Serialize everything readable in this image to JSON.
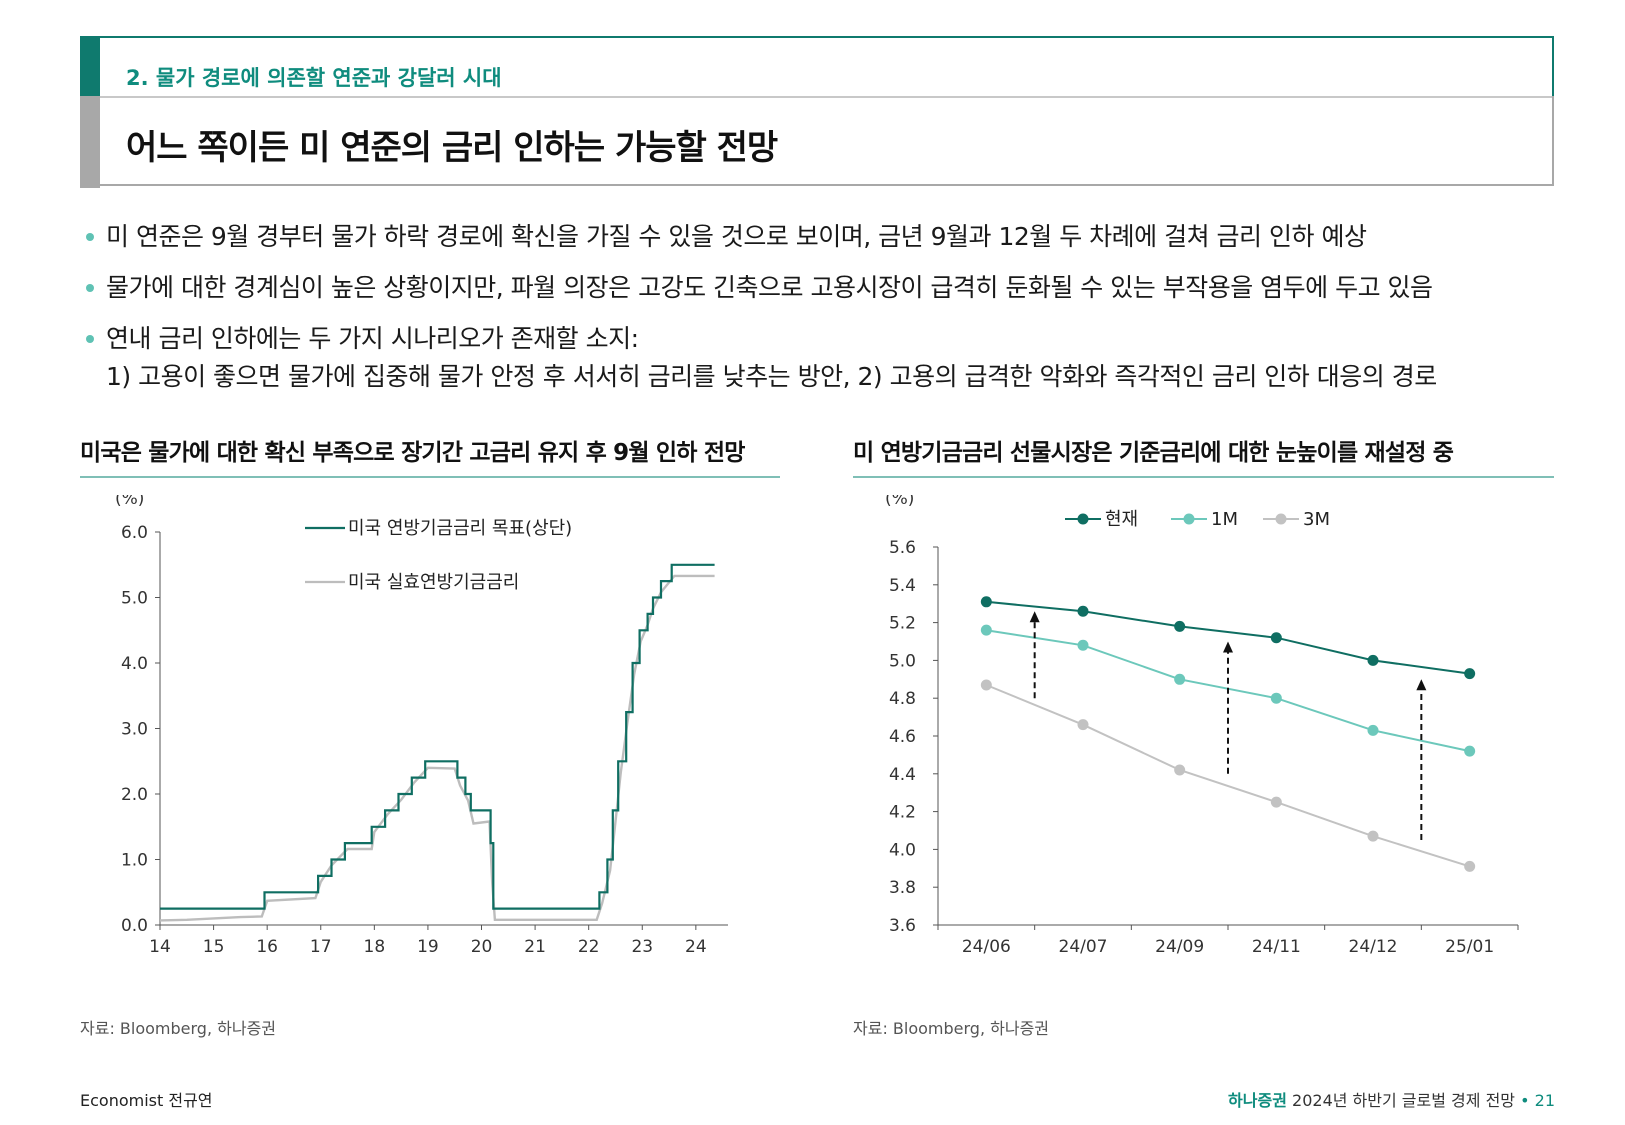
{
  "header": {
    "section_label": "2. 물가 경로에 의존할 연준과 강달러 시대",
    "title": "어느 쪽이든 미 연준의 금리 인하는 가능할 전망"
  },
  "bullets": [
    {
      "text": "미 연준은 9월 경부터 물가 하락 경로에 확신을 가질 수 있을 것으로 보이며, 금년 9월과 12월 두 차례에 걸쳐 금리 인하 예상"
    },
    {
      "text": "물가에 대한 경계심이 높은 상황이지만, 파월 의장은 고강도 긴축으로 고용시장이 급격히 둔화될 수 있는 부작용을 염두에 두고 있음"
    },
    {
      "text": "연내 금리 인하에는 두 가지 시나리오가 존재할 소지:",
      "sub": "1) 고용이 좋으면 물가에 집중해 물가 안정 후 서서히 금리를 낮추는 방안, 2) 고용의 급격한 악화와 즉각적인 금리 인하 대응의 경로"
    }
  ],
  "left_panel": {
    "title": "미국은 물가에 대한 확신 부족으로 장기간 고금리 유지 후 9월 인하 전망",
    "source": "자료: Bloomberg, 하나증권"
  },
  "right_panel": {
    "title": "미 연방기금금리 선물시장은 기준금리에 대한 눈높이를 재설정 중",
    "source": "자료: Bloomberg, 하나증권"
  },
  "footer": {
    "author": "Economist 전규연",
    "brand": "하나증권",
    "report": "2024년 하반기 글로벌 경제 전망",
    "separator": "•",
    "page": "21"
  },
  "chart_data": [
    {
      "type": "line",
      "unit_label": "(%)",
      "ylim": [
        0,
        6
      ],
      "yticks": [
        "0.0",
        "1.0",
        "2.0",
        "3.0",
        "4.0",
        "5.0",
        "6.0"
      ],
      "xlim": [
        14,
        24.6
      ],
      "xticks": [
        "14",
        "15",
        "16",
        "17",
        "18",
        "19",
        "20",
        "21",
        "22",
        "23",
        "24"
      ],
      "legend": "top-center",
      "series": [
        {
          "name": "미국 연방기금금리 목표(상단)",
          "color": "#0f6e62",
          "step": true,
          "points": [
            [
              14,
              0.25
            ],
            [
              15.95,
              0.25
            ],
            [
              15.95,
              0.5
            ],
            [
              16.95,
              0.5
            ],
            [
              16.95,
              0.75
            ],
            [
              17.2,
              0.75
            ],
            [
              17.2,
              1.0
            ],
            [
              17.45,
              1.0
            ],
            [
              17.45,
              1.25
            ],
            [
              17.95,
              1.25
            ],
            [
              17.95,
              1.5
            ],
            [
              18.2,
              1.5
            ],
            [
              18.2,
              1.75
            ],
            [
              18.45,
              1.75
            ],
            [
              18.45,
              2.0
            ],
            [
              18.7,
              2.0
            ],
            [
              18.7,
              2.25
            ],
            [
              18.95,
              2.25
            ],
            [
              18.95,
              2.5
            ],
            [
              19.55,
              2.5
            ],
            [
              19.55,
              2.25
            ],
            [
              19.7,
              2.25
            ],
            [
              19.7,
              2.0
            ],
            [
              19.8,
              2.0
            ],
            [
              19.8,
              1.75
            ],
            [
              20.17,
              1.75
            ],
            [
              20.17,
              1.25
            ],
            [
              20.22,
              1.25
            ],
            [
              20.22,
              0.25
            ],
            [
              22.2,
              0.25
            ],
            [
              22.2,
              0.5
            ],
            [
              22.35,
              0.5
            ],
            [
              22.35,
              1.0
            ],
            [
              22.45,
              1.0
            ],
            [
              22.45,
              1.75
            ],
            [
              22.55,
              1.75
            ],
            [
              22.55,
              2.5
            ],
            [
              22.7,
              2.5
            ],
            [
              22.7,
              3.25
            ],
            [
              22.82,
              3.25
            ],
            [
              22.82,
              4.0
            ],
            [
              22.95,
              4.0
            ],
            [
              22.95,
              4.5
            ],
            [
              23.1,
              4.5
            ],
            [
              23.1,
              4.75
            ],
            [
              23.2,
              4.75
            ],
            [
              23.2,
              5.0
            ],
            [
              23.35,
              5.0
            ],
            [
              23.35,
              5.25
            ],
            [
              23.55,
              5.25
            ],
            [
              23.55,
              5.5
            ],
            [
              24.35,
              5.5
            ]
          ]
        },
        {
          "name": "미국 실효연방기금금리",
          "color": "#bdbdbd",
          "step": false,
          "points": [
            [
              14,
              0.07
            ],
            [
              14.5,
              0.08
            ],
            [
              15,
              0.1
            ],
            [
              15.5,
              0.12
            ],
            [
              15.9,
              0.13
            ],
            [
              16.0,
              0.37
            ],
            [
              16.9,
              0.41
            ],
            [
              17.0,
              0.66
            ],
            [
              17.2,
              0.91
            ],
            [
              17.5,
              1.16
            ],
            [
              17.95,
              1.16
            ],
            [
              18.0,
              1.42
            ],
            [
              18.25,
              1.69
            ],
            [
              18.5,
              1.91
            ],
            [
              18.75,
              2.18
            ],
            [
              19.0,
              2.4
            ],
            [
              19.5,
              2.39
            ],
            [
              19.6,
              2.13
            ],
            [
              19.75,
              1.9
            ],
            [
              19.85,
              1.55
            ],
            [
              20.15,
              1.58
            ],
            [
              20.2,
              0.65
            ],
            [
              20.25,
              0.08
            ],
            [
              21,
              0.08
            ],
            [
              22.15,
              0.08
            ],
            [
              22.25,
              0.33
            ],
            [
              22.4,
              0.83
            ],
            [
              22.5,
              1.58
            ],
            [
              22.6,
              2.33
            ],
            [
              22.72,
              3.08
            ],
            [
              22.85,
              3.83
            ],
            [
              22.97,
              4.33
            ],
            [
              23.1,
              4.58
            ],
            [
              23.2,
              4.83
            ],
            [
              23.35,
              5.08
            ],
            [
              23.6,
              5.33
            ],
            [
              24.35,
              5.33
            ]
          ]
        }
      ]
    },
    {
      "type": "line",
      "unit_label": "(%)",
      "ylim": [
        3.6,
        5.6
      ],
      "yticks": [
        "3.6",
        "3.8",
        "4.0",
        "4.2",
        "4.4",
        "4.6",
        "4.8",
        "5.0",
        "5.2",
        "5.4",
        "5.6"
      ],
      "categories": [
        "24/06",
        "24/07",
        "24/09",
        "24/11",
        "24/12",
        "25/01"
      ],
      "legend": "top-center",
      "series": [
        {
          "name": "현재",
          "color": "#0f6e62",
          "values": [
            5.31,
            5.26,
            5.18,
            5.12,
            5.0,
            4.93
          ]
        },
        {
          "name": "1M",
          "color": "#6cc8bb",
          "values": [
            5.16,
            5.08,
            4.9,
            4.8,
            4.63,
            4.52
          ]
        },
        {
          "name": "3M",
          "color": "#c2c2c2",
          "values": [
            4.87,
            4.66,
            4.42,
            4.25,
            4.07,
            3.91
          ]
        }
      ],
      "arrows": [
        {
          "between": "24/06-24/07",
          "from": 4.8,
          "to": 5.26
        },
        {
          "between": "24/09-24/11",
          "from": 4.4,
          "to": 5.1
        },
        {
          "between": "24/12-25/01",
          "from": 4.05,
          "to": 4.9
        }
      ]
    }
  ]
}
